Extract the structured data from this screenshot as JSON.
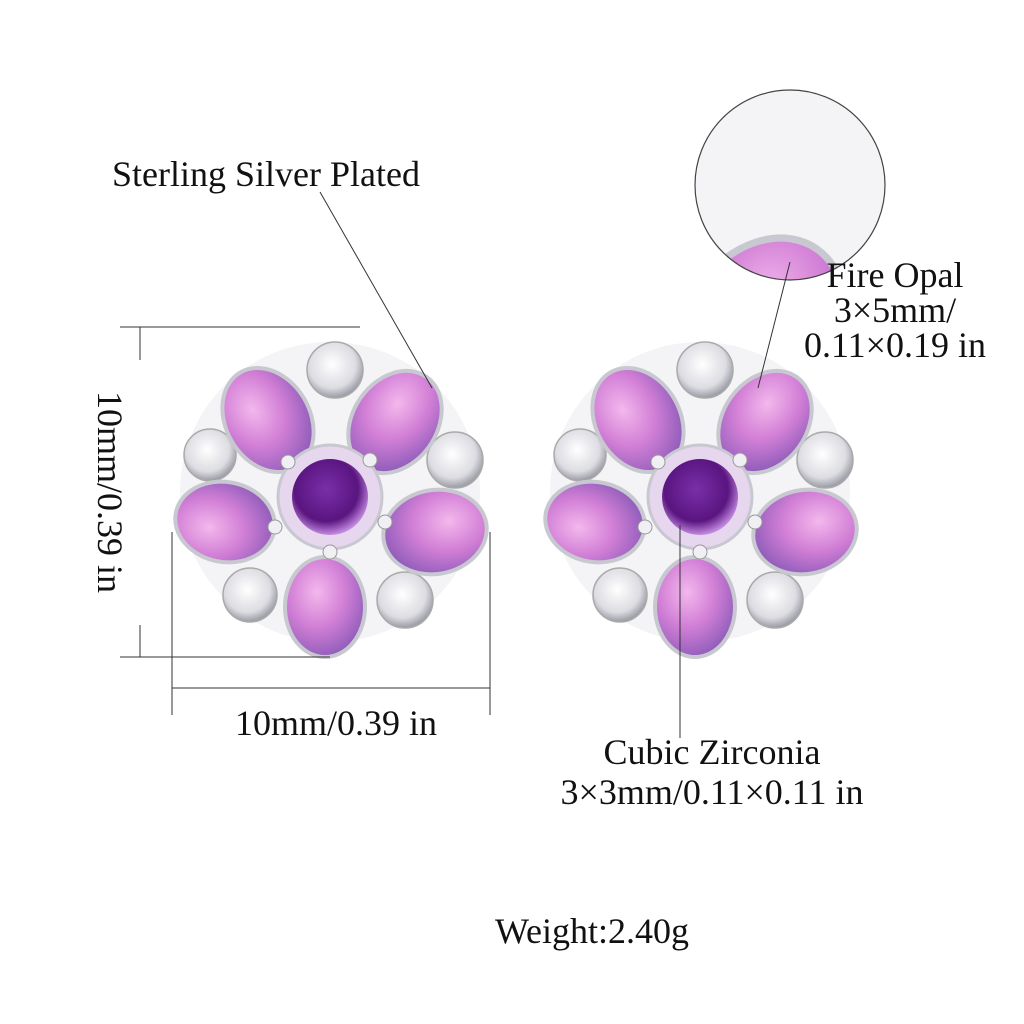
{
  "annotations": {
    "material": "Sterling Silver Plated",
    "height": "10mm/0.39 in",
    "width": "10mm/0.39 in",
    "opal_name": "Fire Opal",
    "opal_size_1": "3×5mm/",
    "opal_size_2": "0.11×0.19 in",
    "cz_name": "Cubic Zirconia",
    "cz_size": "3×3mm/0.11×0.11 in",
    "weight": "Weight:2.40g"
  }
}
